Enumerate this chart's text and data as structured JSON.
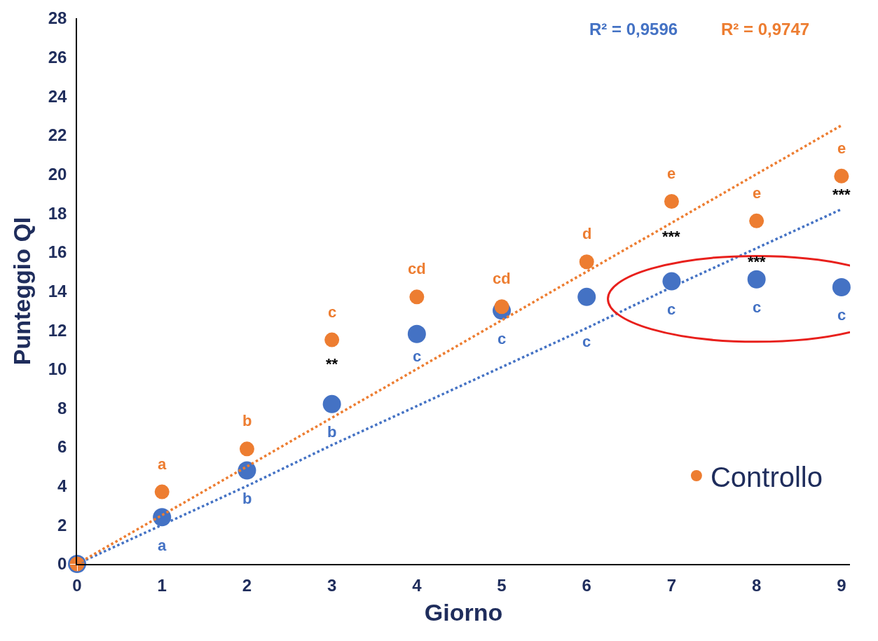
{
  "chart_data": {
    "type": "scatter",
    "xlabel": "Giorno",
    "ylabel": "Punteggio QI",
    "x": [
      0,
      1,
      2,
      3,
      4,
      5,
      6,
      7,
      8,
      9
    ],
    "series": [
      {
        "color": "#4472c4",
        "marker": "circle",
        "values": [
          0,
          2.4,
          4.8,
          8.2,
          11.8,
          13.0,
          13.7,
          14.5,
          14.6,
          14.2
        ]
      },
      {
        "name": "Controllo",
        "color": "#ed7d31",
        "marker": "circle",
        "values": [
          0,
          3.7,
          5.9,
          11.5,
          13.7,
          13.2,
          15.5,
          18.6,
          17.6,
          19.9
        ]
      },
      {
        "type": "line",
        "color": "#4472c4",
        "line_style": "dotted",
        "values": [
          0,
          2.0,
          4.0,
          6.1,
          8.1,
          10.1,
          12.1,
          14.2,
          16.2,
          18.2
        ]
      },
      {
        "type": "line",
        "color": "#ed7d31",
        "line_style": "dotted",
        "values": [
          0,
          2.5,
          5.0,
          7.5,
          10.0,
          12.5,
          15.0,
          17.5,
          20.0,
          22.5
        ]
      }
    ],
    "annotations": [
      "R² = 0,9596",
      "R² = 0,9747",
      {
        "text": "a",
        "x": 1,
        "y": 2.4
      },
      {
        "text": "b",
        "x": 2,
        "y": 4.8
      },
      {
        "text": "b",
        "x": 3,
        "y": 8.2
      },
      {
        "text": "c",
        "x": 4,
        "y": 11.8
      },
      {
        "text": "c",
        "x": 5,
        "y": 13.0
      },
      {
        "text": "c",
        "x": 6,
        "y": 13.7
      },
      {
        "text": "c",
        "x": 7,
        "y": 14.5
      },
      {
        "text": "c",
        "x": 8,
        "y": 14.6
      },
      {
        "text": "c",
        "x": 9,
        "y": 14.2
      },
      {
        "text": "a",
        "x": 1,
        "y": 3.7
      },
      {
        "text": "b",
        "x": 2,
        "y": 5.9
      },
      {
        "text": "c",
        "x": 3,
        "y": 11.5
      },
      {
        "text": "cd",
        "x": 4,
        "y": 13.7
      },
      {
        "text": "cd",
        "x": 5,
        "y": 13.2
      },
      {
        "text": "d",
        "x": 6,
        "y": 15.5
      },
      {
        "text": "e",
        "x": 7,
        "y": 18.6
      },
      {
        "text": "e",
        "x": 8,
        "y": 17.6
      },
      {
        "text": "e",
        "x": 9,
        "y": 19.9
      },
      {
        "text": "**",
        "x": 3,
        "y": 11.5
      },
      {
        "text": "***",
        "x": 7,
        "y": 18.6
      },
      {
        "text": "***",
        "x": 8,
        "y": 17.6
      },
      {
        "text": "***",
        "x": 9,
        "y": 19.9
      }
    ],
    "xlim": [
      0,
      9.1
    ],
    "xticks": [
      0,
      1,
      2,
      3,
      4,
      5,
      6,
      7,
      8,
      9
    ],
    "ylim": [
      0,
      28
    ],
    "yticks": [
      0,
      2,
      4,
      6,
      8,
      10,
      12,
      14,
      16,
      18,
      20,
      22,
      24,
      26,
      28
    ],
    "legend": "bottom right"
  }
}
